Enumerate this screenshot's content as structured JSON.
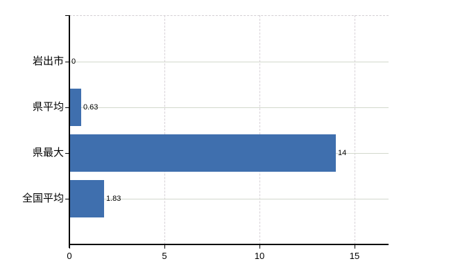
{
  "chart_data": {
    "type": "bar",
    "orientation": "horizontal",
    "title": "",
    "categories": [
      "岩出市",
      "県平均",
      "県最大",
      "全国平均"
    ],
    "values": [
      0,
      0.63,
      14,
      1.83
    ],
    "value_labels": [
      "0",
      "0.63",
      "14",
      "1.83"
    ],
    "x_ticks": [
      0,
      5,
      10,
      15
    ],
    "x_tick_labels": [
      "0",
      "5",
      "10",
      "15"
    ],
    "xlim": [
      0,
      16.8
    ],
    "grid": true,
    "legend": false,
    "colors": {
      "bar": "#3f6fae",
      "grid_horizontal": "#d2d8cc",
      "grid_vertical": "#d6d0d6",
      "axis": "#000000",
      "text": "#000000"
    }
  }
}
